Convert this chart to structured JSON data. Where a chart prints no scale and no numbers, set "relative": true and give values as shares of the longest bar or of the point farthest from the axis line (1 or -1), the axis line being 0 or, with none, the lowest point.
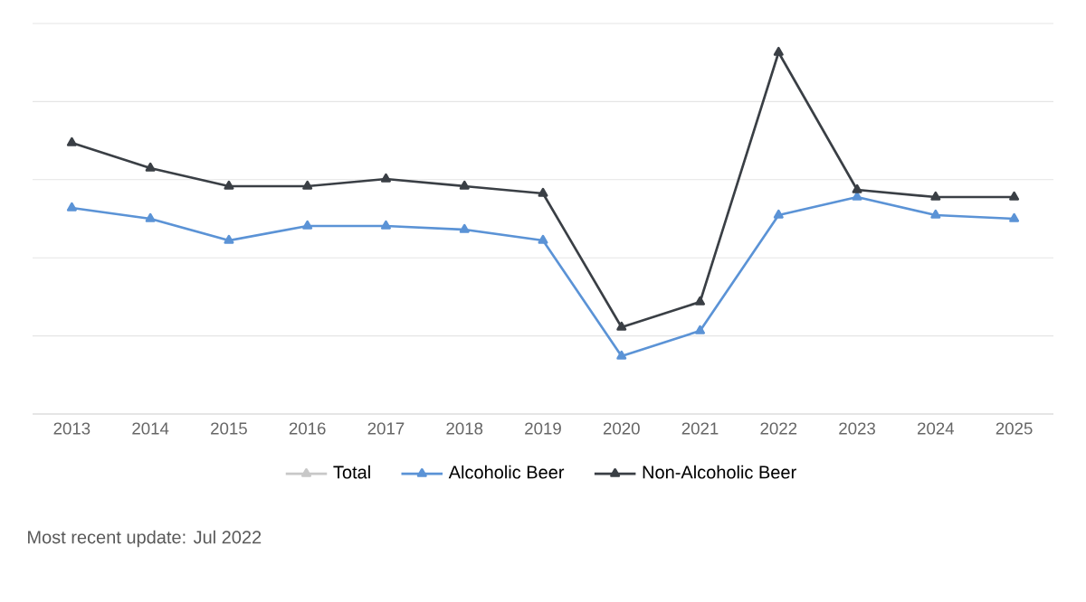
{
  "chart_data": {
    "type": "line",
    "relative": true,
    "categories": [
      "2013",
      "2014",
      "2015",
      "2016",
      "2017",
      "2018",
      "2019",
      "2020",
      "2021",
      "2022",
      "2023",
      "2024",
      "2025"
    ],
    "series": [
      {
        "name": "Total",
        "color": "#c8c8c8",
        "values": [
          null,
          null,
          null,
          null,
          null,
          null,
          null,
          null,
          null,
          null,
          null,
          null,
          null
        ]
      },
      {
        "name": "Alcoholic Beer",
        "color": "#5b93d6",
        "values": [
          0.57,
          0.54,
          0.48,
          0.52,
          0.52,
          0.51,
          0.48,
          0.16,
          0.23,
          0.55,
          0.6,
          0.55,
          0.54
        ]
      },
      {
        "name": "Non-Alcoholic Beer",
        "color": "#3a3f45",
        "values": [
          0.75,
          0.68,
          0.63,
          0.63,
          0.65,
          0.63,
          0.61,
          0.24,
          0.31,
          1,
          0.62,
          0.6,
          0.6
        ]
      }
    ],
    "marker": "triangle",
    "grid": "y",
    "legend": "bottom",
    "annotations": [
      "Most recent update: Jul 2022"
    ]
  }
}
